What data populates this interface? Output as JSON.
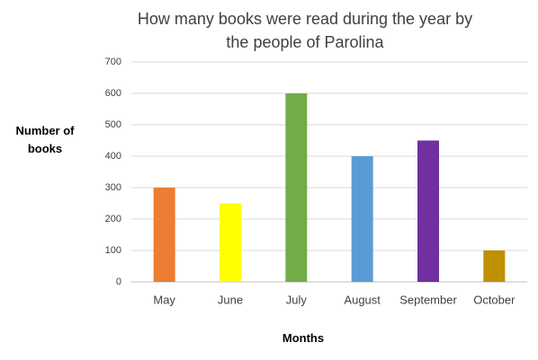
{
  "chart_data": {
    "type": "bar",
    "title": "How many books were read during the year by the people of Parolina",
    "x_label": "Months",
    "y_label": "Number of books",
    "categories": [
      "May",
      "June",
      "July",
      "August",
      "September",
      "October"
    ],
    "values": [
      300,
      250,
      600,
      400,
      450,
      100
    ],
    "colors": [
      "#ed7d31",
      "#ffff00",
      "#70ad47",
      "#5b9bd5",
      "#7030a0",
      "#bf9000"
    ],
    "ylim": [
      0,
      700
    ],
    "yticks": [
      0,
      100,
      200,
      300,
      400,
      500,
      600,
      700
    ],
    "grid": true
  }
}
